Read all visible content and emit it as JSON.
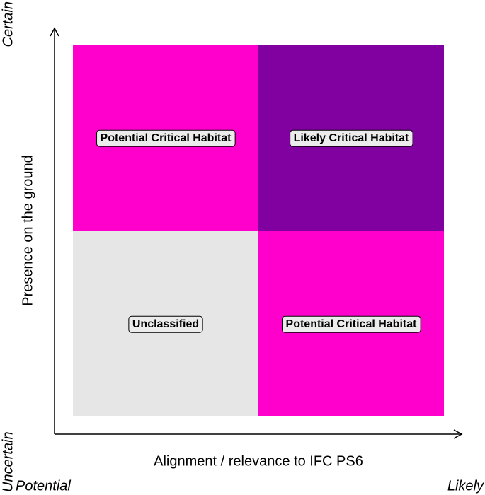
{
  "axes": {
    "x_title": "Alignment / relevance to IFC PS6",
    "y_title": "Presence on the ground",
    "x_low": "Potential",
    "x_high": "Likely",
    "y_low": "Uncertain",
    "y_high": "Certain"
  },
  "quadrants": {
    "top_left": "Potential Critical Habitat",
    "top_right": "Likely Critical Habitat",
    "bottom_left": "Unclassified",
    "bottom_right": "Potential Critical Habitat"
  }
}
